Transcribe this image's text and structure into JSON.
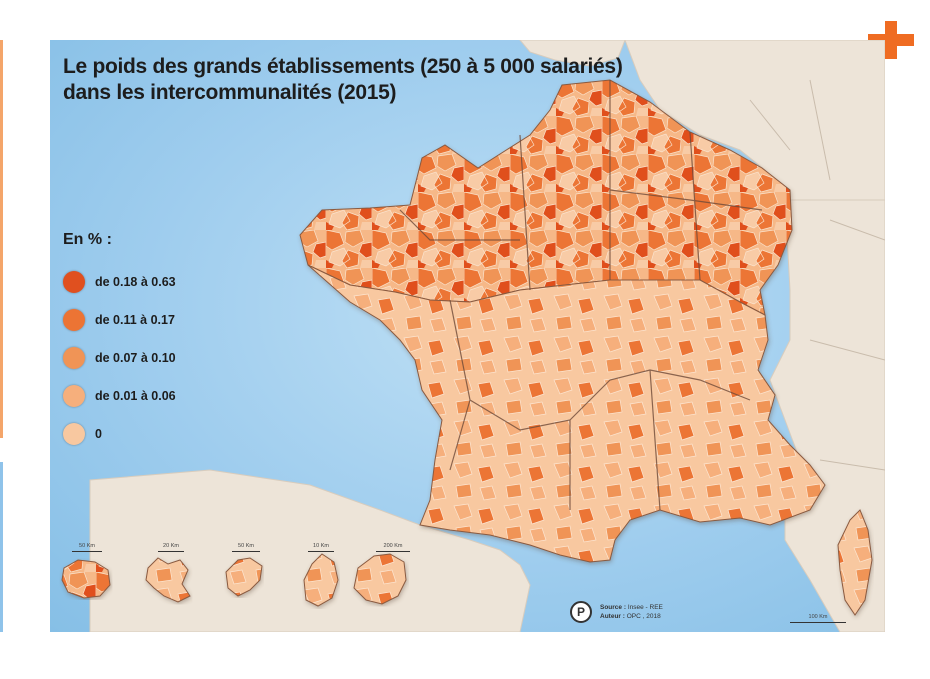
{
  "map": {
    "title_line1": "Le poids des grands établissements (250 à 5 000 salariés)",
    "title_line2": "dans les intercommunalités (2015)"
  },
  "legend": {
    "title": "En % :",
    "items": [
      {
        "label": "de 0.18 à 0.63",
        "color": "#e0501f"
      },
      {
        "label": "de 0.11 à 0.17",
        "color": "#ec7434"
      },
      {
        "label": "de 0.07 à 0.10",
        "color": "#f09456"
      },
      {
        "label": "de 0.01 à 0.06",
        "color": "#f6af7c"
      },
      {
        "label": "0",
        "color": "#f8c8a0"
      }
    ]
  },
  "source": {
    "source_label": "Source :",
    "source_value": "Insee - REE",
    "author_label": "Auteur :",
    "author_value": "OPC , 2018",
    "logo_letter": "P"
  },
  "scales": {
    "guadeloupe": "50 Km",
    "martinique": "20 Km",
    "guyane": "50 Km",
    "reunion": "10 Km",
    "mayotte": "200 Km",
    "metropole": "100 Km"
  },
  "colors": {
    "sea": "#9fcdee",
    "land_neighbor": "#ede4d8",
    "brand_plus": "#ef6c22"
  },
  "icons": {
    "plus": "plus-icon"
  }
}
